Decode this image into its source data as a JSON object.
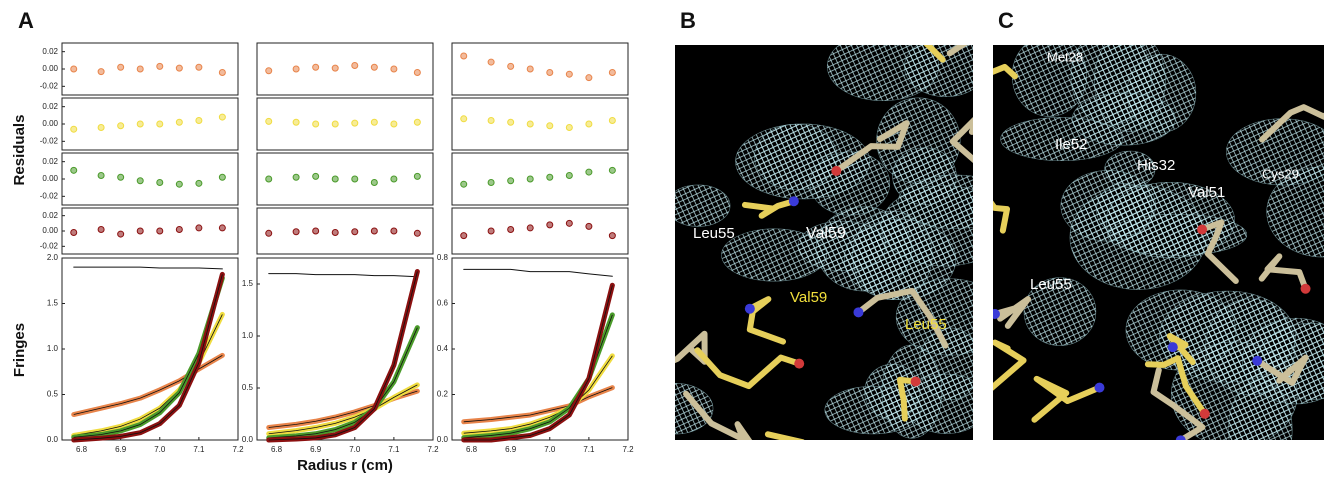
{
  "figure": {
    "panel_labels": [
      "A",
      "B",
      "C"
    ],
    "residuals_label": "Residuals",
    "fringes_label": "Fringes",
    "x_label": "Radius r (cm)"
  },
  "chart_data": [
    {
      "type": "residual",
      "x": [
        6.78,
        6.85,
        6.9,
        6.95,
        7.0,
        7.05,
        7.1,
        7.16
      ],
      "xlim": [
        6.75,
        7.2
      ],
      "ylim": [
        -0.03,
        0.03
      ],
      "yticks": [
        0.02,
        {
          "value": 0,
          "label": "0.00"
        },
        -0.02
      ],
      "series": [
        {
          "color": "#e8844a",
          "values": [
            0,
            -0.003,
            0.002,
            0,
            0.003,
            0.001,
            0.002,
            -0.004
          ]
        }
      ]
    },
    {
      "type": "residual",
      "x": [
        6.78,
        6.85,
        6.9,
        6.95,
        7.0,
        7.05,
        7.1,
        7.16
      ],
      "xlim": [
        6.75,
        7.2
      ],
      "ylim": [
        -0.03,
        0.03
      ],
      "yticks": [
        0.02,
        {
          "value": 0,
          "label": "0.00"
        },
        -0.02
      ],
      "series": [
        {
          "color": "#f0dc40",
          "values": [
            -0.006,
            -0.004,
            -0.002,
            0,
            0,
            0.002,
            0.004,
            0.008
          ]
        }
      ]
    },
    {
      "type": "residual",
      "x": [
        6.78,
        6.85,
        6.9,
        6.95,
        7.0,
        7.05,
        7.1,
        7.16
      ],
      "xlim": [
        6.75,
        7.2
      ],
      "ylim": [
        -0.03,
        0.03
      ],
      "yticks": [
        0.02,
        {
          "value": 0,
          "label": "0.00"
        },
        -0.02
      ],
      "series": [
        {
          "color": "#4a9a2a",
          "values": [
            0.01,
            0.004,
            0.002,
            -0.002,
            -0.004,
            -0.006,
            -0.005,
            0.002
          ]
        }
      ]
    },
    {
      "type": "residual",
      "x": [
        6.78,
        6.85,
        6.9,
        6.95,
        7.0,
        7.05,
        7.1,
        7.16
      ],
      "xlim": [
        6.75,
        7.2
      ],
      "ylim": [
        -0.03,
        0.03
      ],
      "yticks": [
        0.02,
        {
          "value": 0,
          "label": "0.00"
        },
        -0.02
      ],
      "series": [
        {
          "color": "#8b1010",
          "values": [
            -0.002,
            0.002,
            -0.004,
            0,
            0,
            0.002,
            0.004,
            0.004
          ]
        }
      ]
    },
    {
      "type": "fringe",
      "x": [
        6.78,
        6.85,
        6.9,
        6.95,
        7.0,
        7.05,
        7.1,
        7.16
      ],
      "xlim": [
        6.75,
        7.2
      ],
      "ylim": [
        0,
        2
      ],
      "xticks": [
        6.8,
        6.9,
        {
          "value": 7,
          "label": "7.0"
        },
        7.1,
        7.2
      ],
      "yticks": [
        {
          "value": 0,
          "label": "0.0"
        },
        0.5,
        {
          "value": 1,
          "label": "1.0"
        },
        1.5,
        {
          "value": 2,
          "label": "2.0"
        }
      ],
      "series": [
        {
          "color": "#111111",
          "values": [
            1.9,
            1.9,
            1.9,
            1.9,
            1.89,
            1.89,
            1.89,
            1.88
          ]
        },
        {
          "color": "#e8844a",
          "values": [
            0.28,
            0.35,
            0.4,
            0.46,
            0.55,
            0.65,
            0.78,
            0.93
          ]
        },
        {
          "color": "#f0dc40",
          "values": [
            0.05,
            0.1,
            0.15,
            0.23,
            0.35,
            0.55,
            0.85,
            1.38
          ]
        },
        {
          "color": "#4a9a2a",
          "values": [
            0.03,
            0.06,
            0.1,
            0.17,
            0.3,
            0.52,
            0.95,
            1.78
          ]
        },
        {
          "color": "#8b1010",
          "values": [
            0,
            0.02,
            0.04,
            0.08,
            0.18,
            0.38,
            0.85,
            1.82
          ]
        }
      ]
    },
    {
      "type": "residual",
      "x": [
        6.78,
        6.85,
        6.9,
        6.95,
        7.0,
        7.05,
        7.1,
        7.16
      ],
      "xlim": [
        6.75,
        7.2
      ],
      "ylim": [
        -0.03,
        0.03
      ],
      "series": [
        {
          "color": "#e8844a",
          "values": [
            -0.002,
            0,
            0.002,
            0.001,
            0.004,
            0.002,
            0,
            -0.004
          ]
        }
      ]
    },
    {
      "type": "residual",
      "x": [
        6.78,
        6.85,
        6.9,
        6.95,
        7.0,
        7.05,
        7.1,
        7.16
      ],
      "xlim": [
        6.75,
        7.2
      ],
      "ylim": [
        -0.03,
        0.03
      ],
      "series": [
        {
          "color": "#f0dc40",
          "values": [
            0.003,
            0.002,
            0,
            0,
            0.001,
            0.002,
            0,
            0.002
          ]
        }
      ]
    },
    {
      "type": "residual",
      "x": [
        6.78,
        6.85,
        6.9,
        6.95,
        7.0,
        7.05,
        7.1,
        7.16
      ],
      "xlim": [
        6.75,
        7.2
      ],
      "ylim": [
        -0.03,
        0.03
      ],
      "series": [
        {
          "color": "#4a9a2a",
          "values": [
            0,
            0.002,
            0.003,
            0,
            0,
            -0.004,
            0,
            0.003
          ]
        }
      ]
    },
    {
      "type": "residual",
      "x": [
        6.78,
        6.85,
        6.9,
        6.95,
        7.0,
        7.05,
        7.1,
        7.16
      ],
      "xlim": [
        6.75,
        7.2
      ],
      "ylim": [
        -0.03,
        0.03
      ],
      "series": [
        {
          "color": "#8b1010",
          "values": [
            -0.003,
            -0.001,
            0,
            -0.002,
            -0.001,
            0,
            0,
            -0.003
          ]
        }
      ]
    },
    {
      "type": "fringe",
      "x": [
        6.78,
        6.85,
        6.9,
        6.95,
        7.0,
        7.05,
        7.1,
        7.16
      ],
      "xlim": [
        6.75,
        7.2
      ],
      "ylim": [
        0,
        1.75
      ],
      "xticks": [
        6.8,
        6.9,
        {
          "value": 7,
          "label": "7.0"
        },
        7.1,
        7.2
      ],
      "yticks": [
        {
          "value": 0,
          "label": "0.0"
        },
        0.5,
        {
          "value": 1,
          "label": "1.0"
        },
        1.5
      ],
      "series": [
        {
          "color": "#111111",
          "values": [
            1.6,
            1.6,
            1.59,
            1.59,
            1.59,
            1.58,
            1.58,
            1.57
          ]
        },
        {
          "color": "#e8844a",
          "values": [
            0.12,
            0.15,
            0.18,
            0.22,
            0.27,
            0.33,
            0.4,
            0.47
          ]
        },
        {
          "color": "#f0dc40",
          "values": [
            0.06,
            0.09,
            0.12,
            0.16,
            0.22,
            0.3,
            0.41,
            0.53
          ]
        },
        {
          "color": "#4a9a2a",
          "values": [
            0.02,
            0.04,
            0.06,
            0.1,
            0.17,
            0.3,
            0.56,
            1.08
          ]
        },
        {
          "color": "#8b1010",
          "values": [
            0,
            0.01,
            0.02,
            0.05,
            0.12,
            0.3,
            0.72,
            1.62
          ]
        }
      ]
    },
    {
      "type": "residual",
      "x": [
        6.78,
        6.85,
        6.9,
        6.95,
        7.0,
        7.05,
        7.1,
        7.16
      ],
      "xlim": [
        6.75,
        7.2
      ],
      "ylim": [
        -0.03,
        0.03
      ],
      "series": [
        {
          "color": "#e8844a",
          "values": [
            0.015,
            0.008,
            0.003,
            0,
            -0.004,
            -0.006,
            -0.01,
            -0.004
          ]
        }
      ]
    },
    {
      "type": "residual",
      "x": [
        6.78,
        6.85,
        6.9,
        6.95,
        7.0,
        7.05,
        7.1,
        7.16
      ],
      "xlim": [
        6.75,
        7.2
      ],
      "ylim": [
        -0.03,
        0.03
      ],
      "series": [
        {
          "color": "#f0dc40",
          "values": [
            0.006,
            0.004,
            0.002,
            0,
            -0.002,
            -0.004,
            0,
            0.004
          ]
        }
      ]
    },
    {
      "type": "residual",
      "x": [
        6.78,
        6.85,
        6.9,
        6.95,
        7.0,
        7.05,
        7.1,
        7.16
      ],
      "xlim": [
        6.75,
        7.2
      ],
      "ylim": [
        -0.03,
        0.03
      ],
      "series": [
        {
          "color": "#4a9a2a",
          "values": [
            -0.006,
            -0.004,
            -0.002,
            0,
            0.002,
            0.004,
            0.008,
            0.01
          ]
        }
      ]
    },
    {
      "type": "residual",
      "x": [
        6.78,
        6.85,
        6.9,
        6.95,
        7.0,
        7.05,
        7.1,
        7.16
      ],
      "xlim": [
        6.75,
        7.2
      ],
      "ylim": [
        -0.03,
        0.03
      ],
      "series": [
        {
          "color": "#8b1010",
          "values": [
            -0.006,
            0,
            0.002,
            0.004,
            0.008,
            0.01,
            0.006,
            -0.006
          ]
        }
      ]
    },
    {
      "type": "fringe",
      "x": [
        6.78,
        6.85,
        6.9,
        6.95,
        7.0,
        7.05,
        7.1,
        7.16
      ],
      "xlim": [
        6.75,
        7.2
      ],
      "ylim": [
        0,
        0.8
      ],
      "xticks": [
        6.8,
        6.9,
        {
          "value": 7,
          "label": "7.0"
        },
        7.1,
        7.2
      ],
      "yticks": [
        {
          "value": 0,
          "label": "0.0"
        },
        0.2,
        0.4,
        0.6,
        0.8
      ],
      "series": [
        {
          "color": "#111111",
          "values": [
            0.75,
            0.75,
            0.75,
            0.74,
            0.74,
            0.74,
            0.73,
            0.72
          ]
        },
        {
          "color": "#e8844a",
          "values": [
            0.08,
            0.09,
            0.1,
            0.11,
            0.13,
            0.15,
            0.19,
            0.23
          ]
        },
        {
          "color": "#f0dc40",
          "values": [
            0.03,
            0.04,
            0.05,
            0.07,
            0.1,
            0.14,
            0.22,
            0.37
          ]
        },
        {
          "color": "#4a9a2a",
          "values": [
            0.01,
            0.02,
            0.03,
            0.05,
            0.08,
            0.14,
            0.27,
            0.55
          ]
        },
        {
          "color": "#8b1010",
          "values": [
            0,
            0,
            0.01,
            0.02,
            0.05,
            0.11,
            0.27,
            0.68
          ]
        }
      ]
    }
  ],
  "images": [
    {
      "annotations": [
        {
          "text": "Leu55",
          "color": "#ffffff"
        },
        {
          "text": "Val59",
          "color": "#ffffff"
        },
        {
          "text": "Val59",
          "color": "#f2e03c"
        },
        {
          "text": "Leu55",
          "color": "#f2e03c"
        }
      ]
    },
    {
      "annotations": [
        {
          "text": "Met28",
          "color": "#ffffff"
        },
        {
          "text": "Ile52",
          "color": "#ffffff"
        },
        {
          "text": "His32",
          "color": "#ffffff"
        },
        {
          "text": "Cys29",
          "color": "#ffffff"
        },
        {
          "text": "Val51",
          "color": "#ffffff"
        },
        {
          "text": "Leu55",
          "color": "#ffffff"
        }
      ]
    }
  ]
}
